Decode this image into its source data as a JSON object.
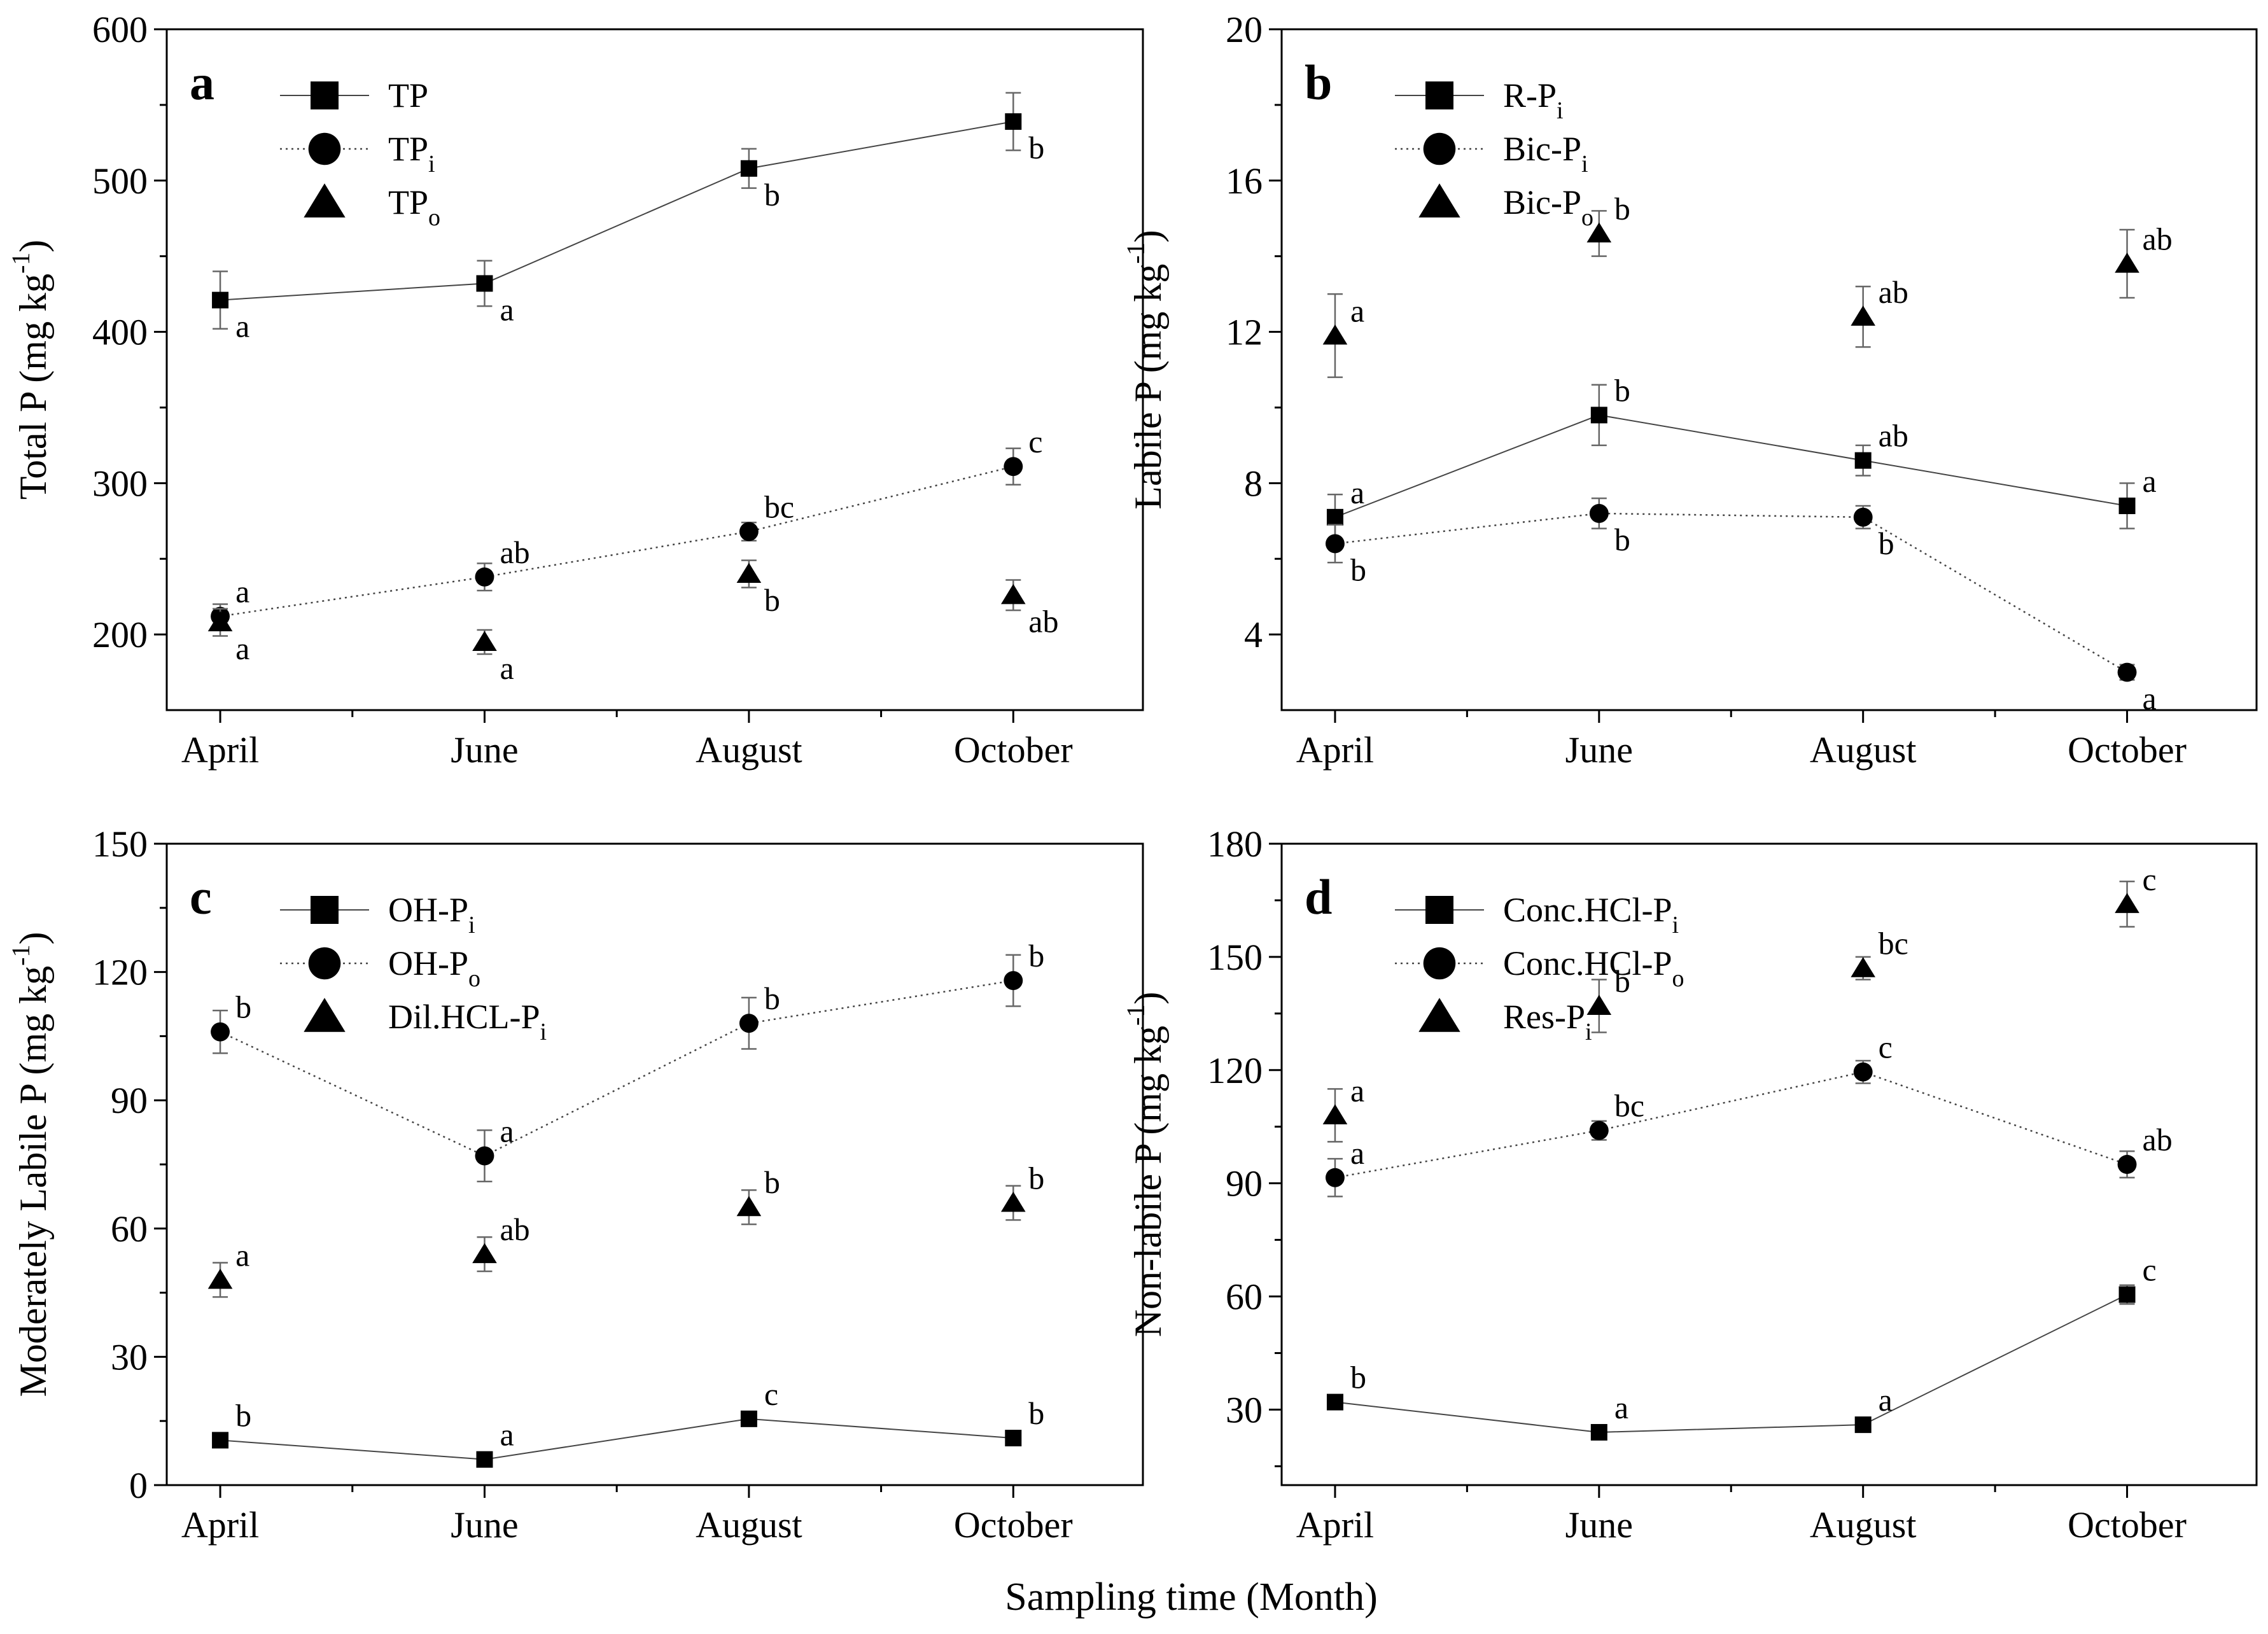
{
  "figure": {
    "xlabel": "Sampling time (Month)"
  },
  "chart_data": [
    {
      "panel": "a",
      "type": "line",
      "categories": [
        "April",
        "June",
        "August",
        "October"
      ],
      "ylabel": "Total P (mg kg",
      "ylabel_sup": "-1",
      "ylim": [
        150,
        600
      ],
      "yticks": [
        200,
        300,
        400,
        500,
        600
      ],
      "series": [
        {
          "name": "TP",
          "sub": "",
          "marker": "square",
          "line": "solid",
          "values": [
            421,
            432,
            508,
            539
          ],
          "err": [
            19,
            15,
            13,
            19
          ],
          "labels": [
            "a",
            "a",
            "b",
            "b"
          ],
          "label_pos": [
            "br",
            "br",
            "br",
            "br"
          ]
        },
        {
          "name": "TP",
          "sub": "i",
          "marker": "circle",
          "line": "dotted",
          "values": [
            212,
            238,
            268,
            311
          ],
          "err": [
            8,
            9,
            6,
            12
          ],
          "labels": [
            "a",
            "ab",
            "bc",
            "c"
          ],
          "label_pos": [
            "tr",
            "tr",
            "tr",
            "tr"
          ]
        },
        {
          "name": "TP",
          "sub": "o",
          "marker": "triangle",
          "line": "none",
          "values": [
            208,
            195,
            240,
            226
          ],
          "err": [
            9,
            8,
            9,
            10
          ],
          "labels": [
            "a",
            "a",
            "b",
            "ab"
          ],
          "label_pos": [
            "br",
            "br",
            "br",
            "br"
          ]
        }
      ]
    },
    {
      "panel": "b",
      "type": "line",
      "categories": [
        "April",
        "June",
        "August",
        "October"
      ],
      "ylabel": "Labile P (mg kg",
      "ylabel_sup": "-1",
      "ylim": [
        2,
        20
      ],
      "yticks": [
        4,
        8,
        12,
        16,
        20
      ],
      "series": [
        {
          "name": "R-P",
          "sub": "i",
          "marker": "square",
          "line": "solid",
          "values": [
            7.1,
            9.8,
            8.6,
            7.4
          ],
          "err": [
            0.6,
            0.8,
            0.4,
            0.6
          ],
          "labels": [
            "a",
            "b",
            "ab",
            "a"
          ],
          "label_pos": [
            "tr",
            "tr",
            "tr",
            "tr"
          ]
        },
        {
          "name": "Bic-P",
          "sub": "i",
          "marker": "circle",
          "line": "dotted",
          "values": [
            6.4,
            7.2,
            7.1,
            3.0
          ],
          "err": [
            0.5,
            0.4,
            0.3,
            0.2
          ],
          "labels": [
            "b",
            "b",
            "b",
            "a"
          ],
          "label_pos": [
            "br",
            "br",
            "br",
            "br"
          ]
        },
        {
          "name": "Bic-P",
          "sub": "o",
          "marker": "triangle",
          "line": "none",
          "values": [
            11.9,
            14.6,
            12.4,
            13.8
          ],
          "err": [
            1.1,
            0.6,
            0.8,
            0.9
          ],
          "labels": [
            "a",
            "b",
            "ab",
            "ab"
          ],
          "label_pos": [
            "tr",
            "tr",
            "tr",
            "tr"
          ]
        }
      ]
    },
    {
      "panel": "c",
      "type": "line",
      "categories": [
        "April",
        "June",
        "August",
        "October"
      ],
      "ylabel": "Moderately Labile P (mg kg",
      "ylabel_sup": "-1",
      "ylim": [
        0,
        150
      ],
      "yticks": [
        0,
        30,
        60,
        90,
        120,
        150
      ],
      "series": [
        {
          "name": "OH-P",
          "sub": "i",
          "marker": "square",
          "line": "solid",
          "values": [
            10.5,
            6,
            15.5,
            11
          ],
          "err": [
            1,
            1,
            1,
            1
          ],
          "labels": [
            "b",
            "a",
            "c",
            "b"
          ],
          "label_pos": [
            "tr",
            "tr",
            "tr",
            "tr"
          ]
        },
        {
          "name": "OH-P",
          "sub": "o",
          "marker": "circle",
          "line": "dotted",
          "values": [
            106,
            77,
            108,
            118
          ],
          "err": [
            5,
            6,
            6,
            6
          ],
          "labels": [
            "b",
            "a",
            "b",
            "b"
          ],
          "label_pos": [
            "tr",
            "tr",
            "tr",
            "tr"
          ]
        },
        {
          "name": "Dil.HCL-P",
          "sub": "i",
          "marker": "triangle",
          "line": "none",
          "values": [
            48,
            54,
            65,
            66
          ],
          "err": [
            4,
            4,
            4,
            4
          ],
          "labels": [
            "a",
            "ab",
            "b",
            "b"
          ],
          "label_pos": [
            "tr",
            "tr",
            "tr",
            "tr"
          ]
        }
      ]
    },
    {
      "panel": "d",
      "type": "line",
      "categories": [
        "April",
        "June",
        "August",
        "October"
      ],
      "ylabel": "Non-labile P (mg kg",
      "ylabel_sup": "-1",
      "ylim": [
        10,
        180
      ],
      "yticks": [
        30,
        60,
        90,
        120,
        150,
        180
      ],
      "series": [
        {
          "name": "Conc.HCl-P",
          "sub": "i",
          "marker": "square",
          "line": "solid",
          "values": [
            32,
            24,
            26,
            60.5
          ],
          "err": [
            1,
            1,
            1,
            2.5
          ],
          "labels": [
            "b",
            "a",
            "a",
            "c"
          ],
          "label_pos": [
            "tr",
            "tr",
            "tr",
            "tr"
          ]
        },
        {
          "name": "Conc.HCl-P",
          "sub": "o",
          "marker": "circle",
          "line": "dotted",
          "values": [
            91.5,
            104,
            119.5,
            95
          ],
          "err": [
            5,
            2.5,
            3,
            3.5
          ],
          "labels": [
            "a",
            "bc",
            "c",
            "ab"
          ],
          "label_pos": [
            "tr",
            "tr",
            "tr",
            "tr"
          ]
        },
        {
          "name": "Res-P",
          "sub": "i",
          "marker": "triangle",
          "line": "none",
          "values": [
            108,
            137,
            147,
            164
          ],
          "err": [
            7,
            7,
            3,
            6
          ],
          "labels": [
            "a",
            "b",
            "bc",
            "c"
          ],
          "label_pos": [
            "tr",
            "tr",
            "tr",
            "tr"
          ]
        }
      ]
    }
  ]
}
